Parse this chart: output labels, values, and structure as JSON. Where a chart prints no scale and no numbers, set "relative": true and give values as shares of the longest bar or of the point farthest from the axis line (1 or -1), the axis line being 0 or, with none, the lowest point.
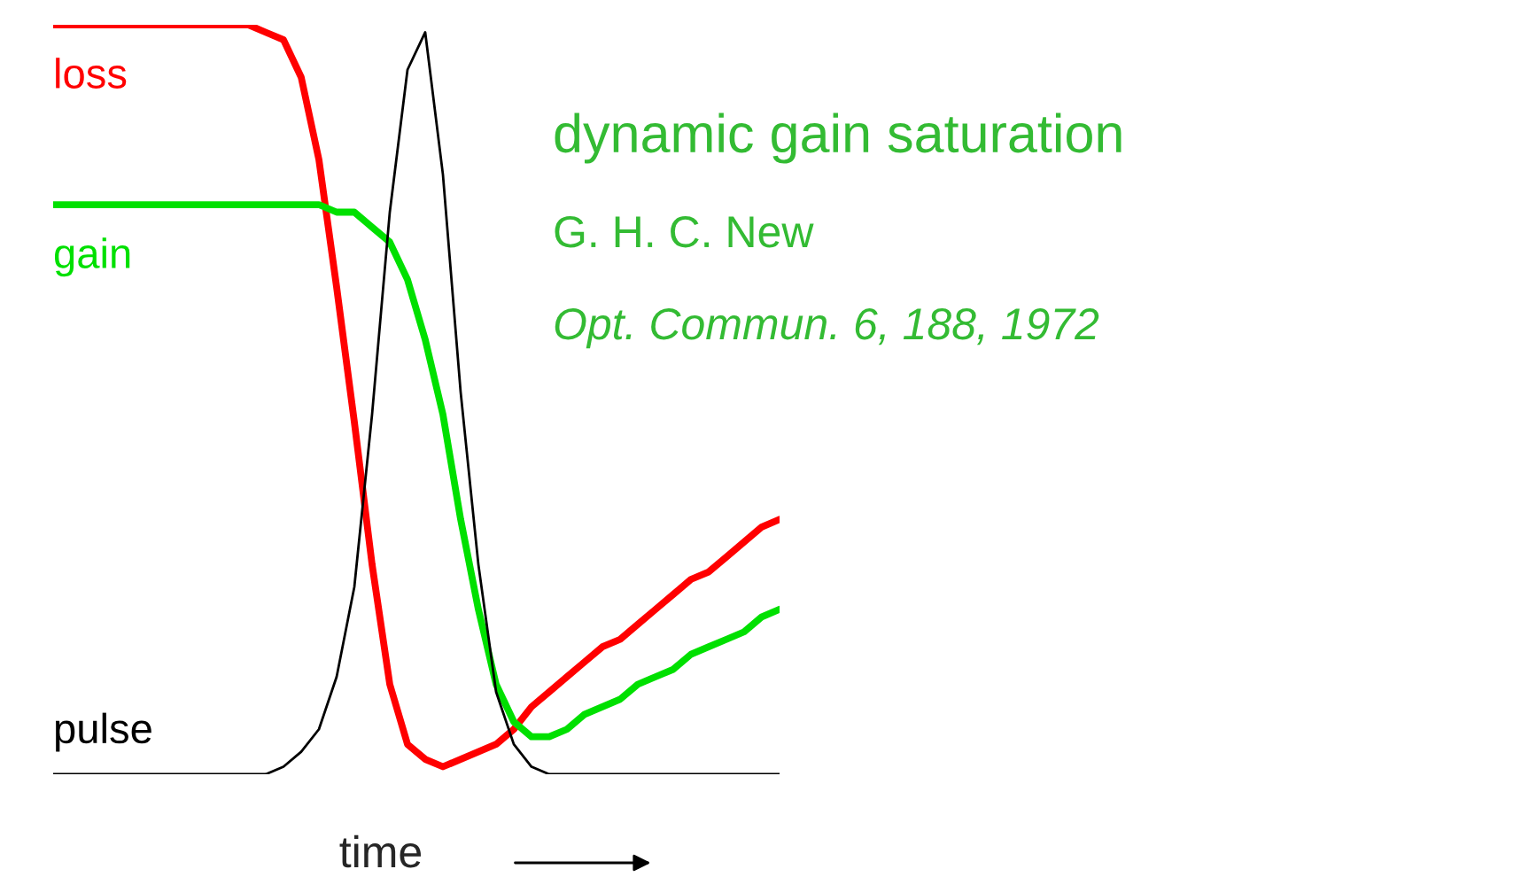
{
  "chart_data": {
    "type": "line",
    "relative": true,
    "xlabel": "time",
    "annotations": [
      "dynamic gain saturation",
      "G. H. C. New",
      "Opt. Commun. 6, 188, 1972"
    ],
    "categories": [
      null,
      null,
      null,
      null,
      null,
      null,
      null,
      null,
      null,
      null,
      null,
      null,
      null,
      null,
      null,
      null,
      null,
      null,
      null,
      null,
      null,
      null,
      null,
      null,
      null,
      null,
      null,
      null,
      null,
      null,
      null,
      null,
      null,
      null,
      null,
      null,
      null,
      null,
      null,
      null,
      null,
      null
    ],
    "series": [
      {
        "name": "loss",
        "color": "#ff0000",
        "values": [
          1.0,
          1.0,
          1.0,
          1.0,
          1.0,
          1.0,
          1.0,
          1.0,
          1.0,
          1.0,
          1.0,
          1.0,
          0.99,
          0.98,
          0.93,
          0.82,
          0.65,
          0.47,
          0.28,
          0.12,
          0.04,
          0.02,
          0.01,
          0.02,
          0.03,
          0.04,
          0.06,
          0.09,
          0.11,
          0.13,
          0.15,
          0.17,
          0.18,
          0.2,
          0.22,
          0.24,
          0.26,
          0.27,
          0.29,
          0.31,
          0.33,
          0.34
        ]
      },
      {
        "name": "gain",
        "color": "#00e000",
        "values": [
          0.76,
          0.76,
          0.76,
          0.76,
          0.76,
          0.76,
          0.76,
          0.76,
          0.76,
          0.76,
          0.76,
          0.76,
          0.76,
          0.76,
          0.76,
          0.76,
          0.75,
          0.75,
          0.73,
          0.71,
          0.66,
          0.58,
          0.48,
          0.34,
          0.22,
          0.12,
          0.07,
          0.05,
          0.05,
          0.06,
          0.08,
          0.09,
          0.1,
          0.12,
          0.13,
          0.14,
          0.16,
          0.17,
          0.18,
          0.19,
          0.21,
          0.22
        ]
      },
      {
        "name": "pulse",
        "color": "#000000",
        "values": [
          0,
          0,
          0,
          0,
          0,
          0,
          0,
          0,
          0,
          0,
          0,
          0,
          0,
          0.01,
          0.03,
          0.06,
          0.13,
          0.25,
          0.48,
          0.75,
          0.94,
          0.99,
          0.8,
          0.51,
          0.28,
          0.11,
          0.04,
          0.01,
          0,
          0,
          0,
          0,
          0,
          0,
          0,
          0,
          0,
          0,
          0,
          0,
          0,
          0
        ]
      }
    ]
  }
}
